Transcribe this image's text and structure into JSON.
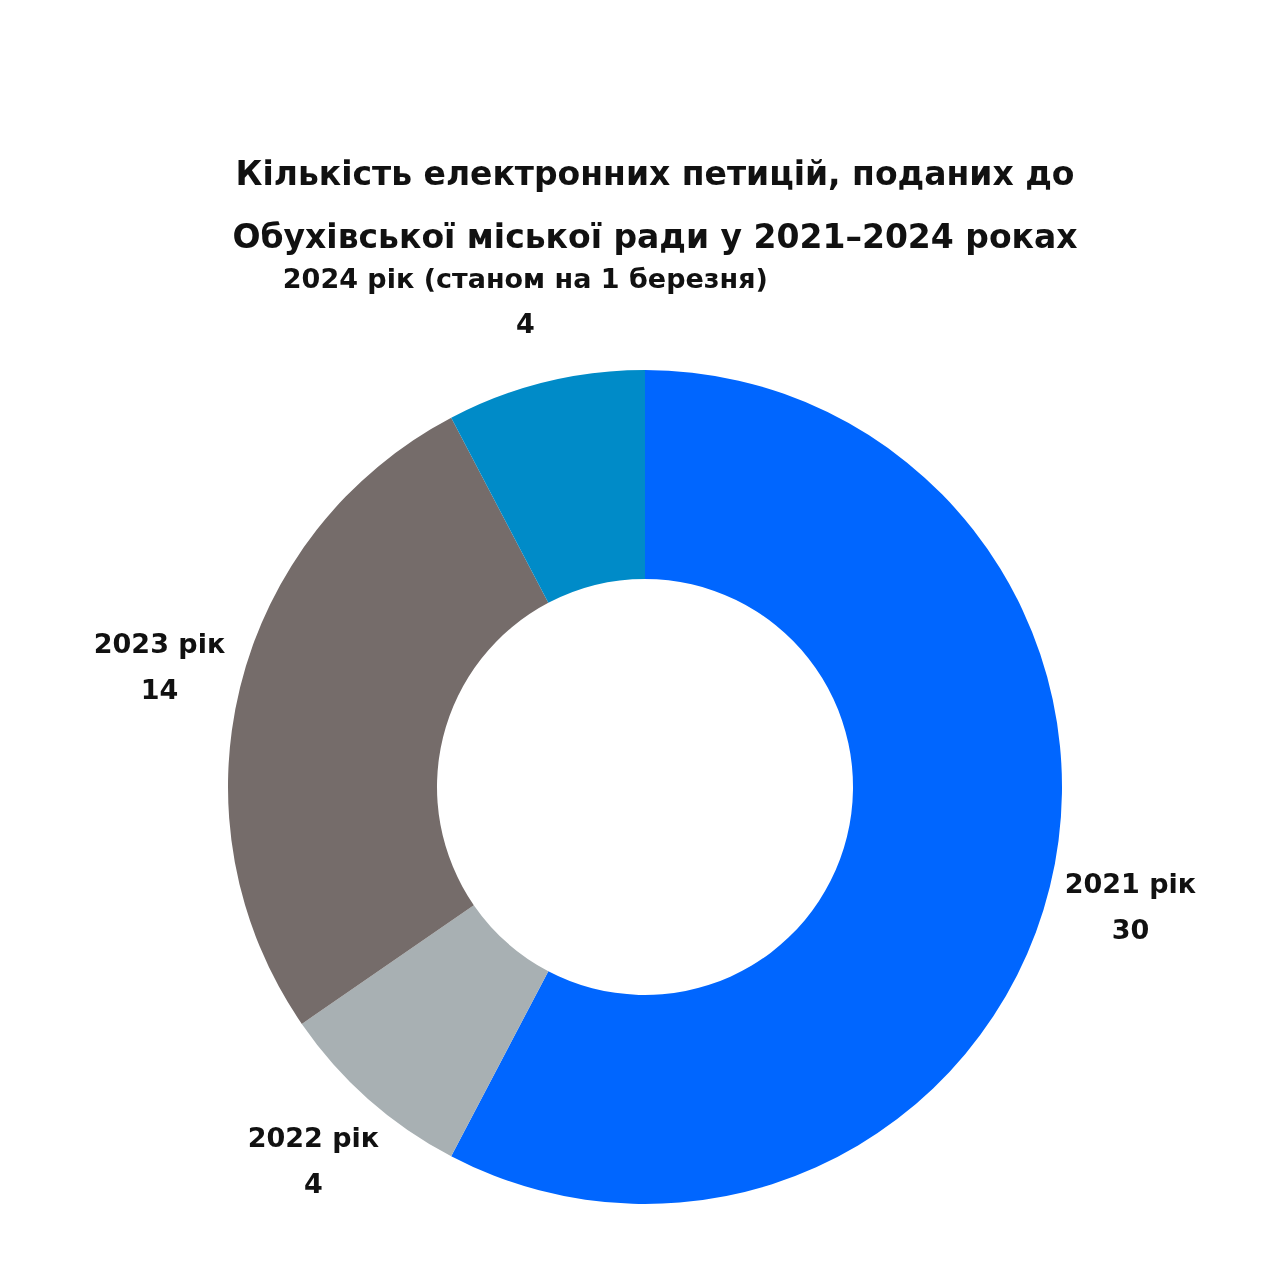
{
  "chart_data": {
    "type": "donut",
    "title": "Кількість електронних петицій, поданих до Обухівської міської ради у 2021–2024 роках",
    "categories": [
      "2021 рік",
      "2022 рік",
      "2023 рік",
      "2024 рік (станом на 1 березня)"
    ],
    "values": [
      30,
      4,
      14,
      4
    ],
    "colors": [
      "#0066ff",
      "#a8b0b3",
      "#756c6a",
      "#008bc8"
    ],
    "data_labels": true
  }
}
